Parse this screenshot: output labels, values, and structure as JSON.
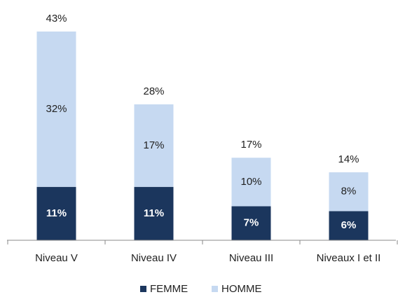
{
  "chart_data": {
    "type": "stacked-bar",
    "categories": [
      "Niveau V",
      "Niveau IV",
      "Niveau III",
      "Niveaux I et II"
    ],
    "series": [
      {
        "name": "FEMME",
        "color": "#1b365d",
        "values": [
          11,
          11,
          7,
          6
        ],
        "value_labels": [
          "11%",
          "11%",
          "7%",
          "6%"
        ]
      },
      {
        "name": "HOMME",
        "color": "#c6d9f1",
        "values": [
          32,
          17,
          10,
          8
        ],
        "value_labels": [
          "32%",
          "17%",
          "10%",
          "8%"
        ]
      }
    ],
    "totals": [
      43,
      28,
      17,
      14
    ],
    "total_labels": [
      "43%",
      "28%",
      "17%",
      "14%"
    ],
    "legend": "bottom"
  }
}
